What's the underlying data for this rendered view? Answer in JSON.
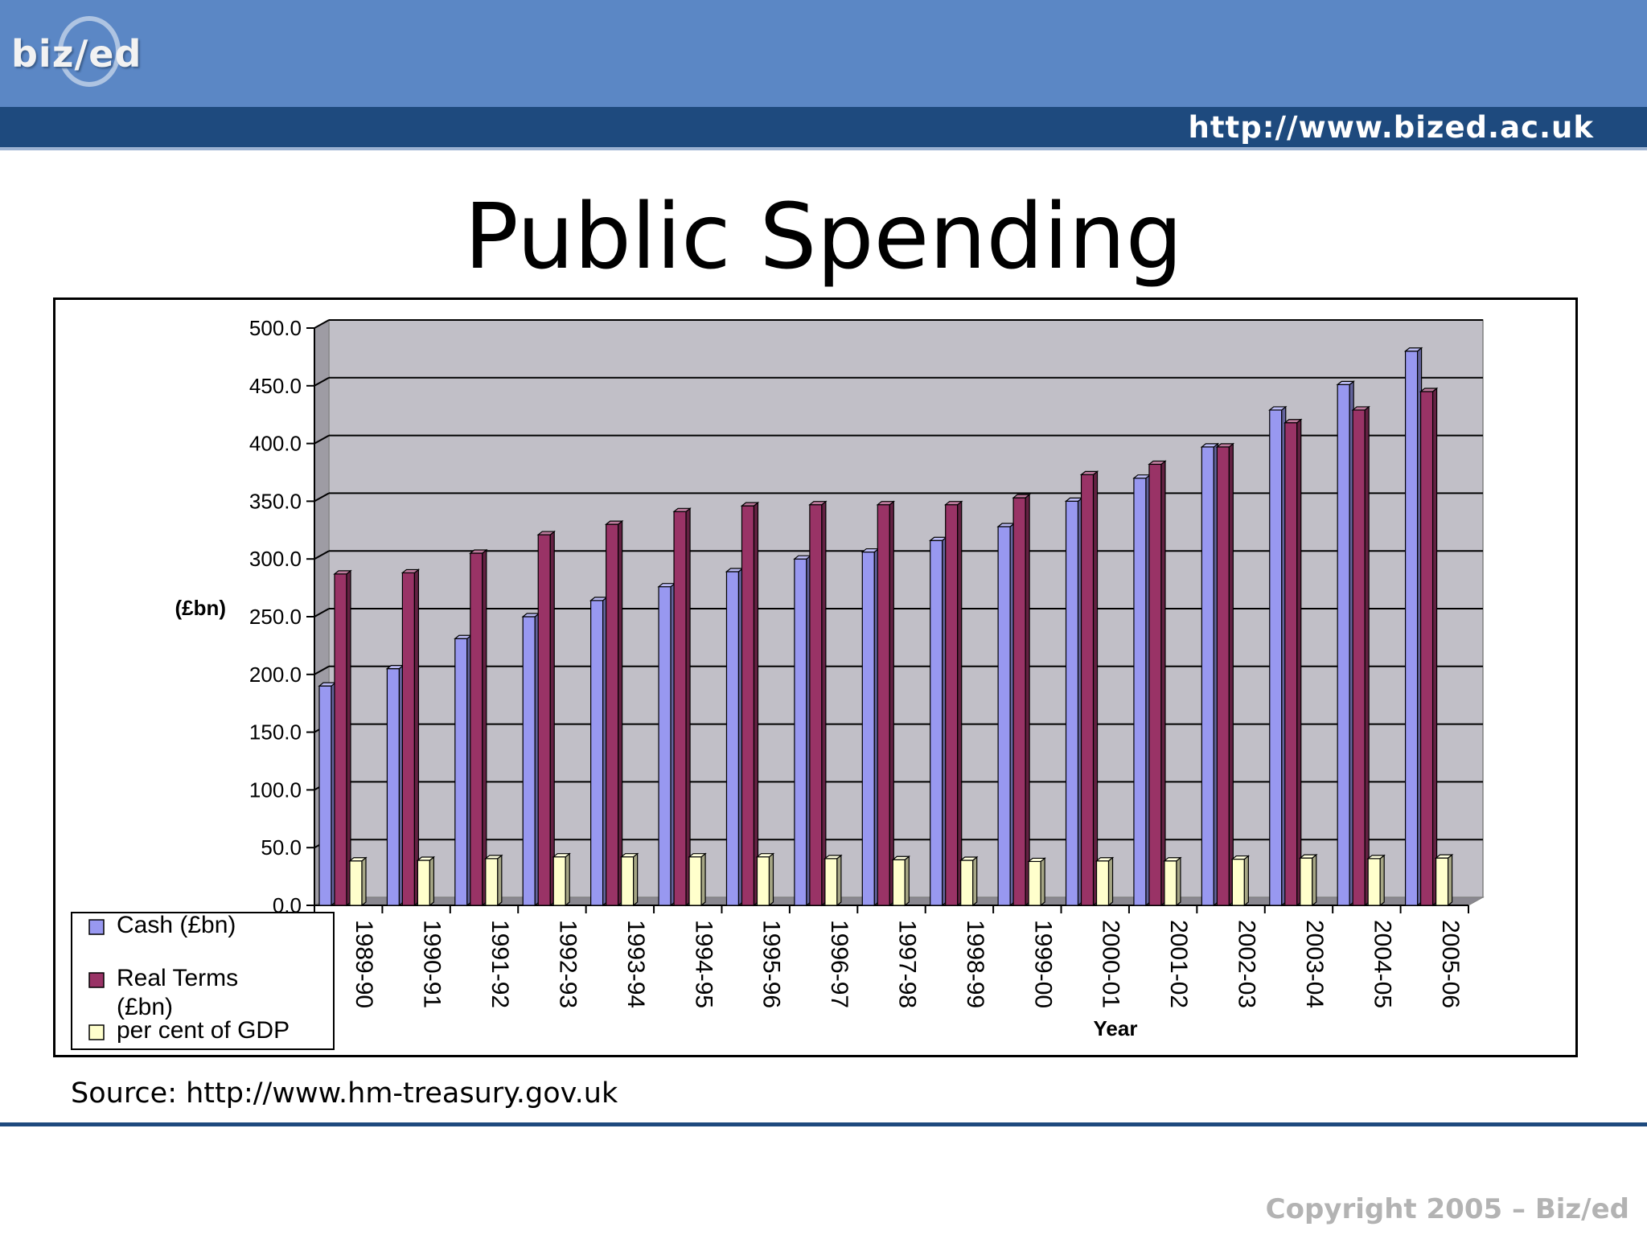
{
  "header": {
    "logo_text": "biz/ed",
    "url": "http://www.bized.ac.uk"
  },
  "slide": {
    "title": "Public Spending",
    "source": "Source: http://www.hm-treasury.gov.uk",
    "copyright": "Copyright 2005 – Biz/ed"
  },
  "colors": {
    "header_band": "#5b87c5",
    "header_bar": "#1e4a7e",
    "plot_background": "#c1bfc7",
    "cash": "#9898f0",
    "real_terms": "#993366",
    "gdp": "#ffffcc"
  },
  "chart_data": {
    "type": "bar",
    "three_d": true,
    "title": "",
    "xlabel": "Year",
    "ylabel": "(£bn)",
    "ylim": [
      0,
      500
    ],
    "ytick_step": 50,
    "y_tick_labels": [
      "0.0",
      "50.0",
      "100.0",
      "150.0",
      "200.0",
      "250.0",
      "300.0",
      "350.0",
      "400.0",
      "450.0",
      "500.0"
    ],
    "grid": true,
    "legend_position": "bottom-left",
    "categories": [
      "1989-90",
      "1990-91",
      "1991-92",
      "1992-93",
      "1993-94",
      "1994-95",
      "1995-96",
      "1996-97",
      "1997-98",
      "1998-99",
      "1999-00",
      "2000-01",
      "2001-02",
      "2002-03",
      "2003-04",
      "2004-05",
      "2005-06"
    ],
    "series": [
      {
        "name": "Cash (£bn)",
        "color": "#9898f0",
        "values": [
          190,
          205,
          231,
          250,
          264,
          276,
          289,
          300,
          306,
          316,
          328,
          350,
          370,
          397,
          429,
          451,
          480
        ]
      },
      {
        "name": "Real Terms (£bn)",
        "color": "#993366",
        "values": [
          287,
          288,
          305,
          321,
          330,
          341,
          346,
          347,
          347,
          347,
          353,
          373,
          382,
          397,
          418,
          429,
          445
        ]
      },
      {
        "name": "per cent of GDP",
        "color": "#ffffcc",
        "values": [
          38.5,
          39,
          40.5,
          42,
          42,
          42,
          42,
          40.5,
          39.5,
          39,
          38,
          38.5,
          38.5,
          40,
          41,
          40.5,
          41
        ]
      }
    ]
  }
}
